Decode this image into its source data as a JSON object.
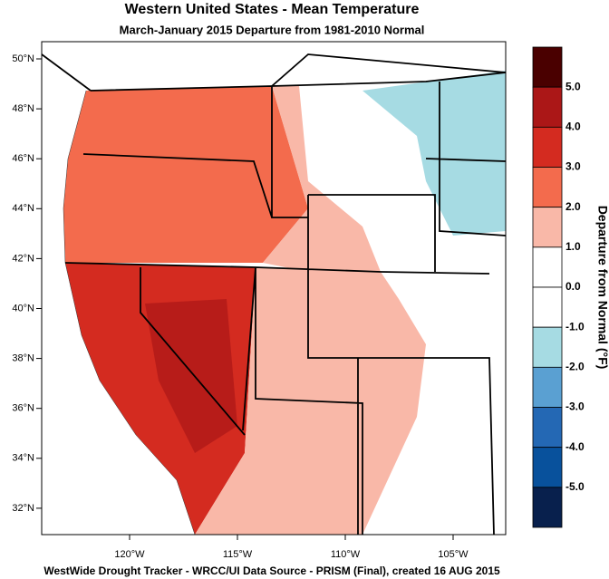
{
  "header": {
    "title": "Western United States - Mean Temperature",
    "subtitle": "March-January 2015  Departure from 1981-2010 Normal"
  },
  "map": {
    "lat_labels": [
      "50°N",
      "48°N",
      "46°N",
      "44°N",
      "42°N",
      "40°N",
      "38°N",
      "36°N",
      "34°N",
      "32°N"
    ],
    "lon_labels": [
      "120°W",
      "115°W",
      "110°W",
      "105°W"
    ]
  },
  "colorbar": {
    "title": "Departure from Normal (°F)",
    "labels": [
      "5.0",
      "4.0",
      "3.0",
      "2.0",
      "1.0",
      "0.0",
      "-1.0",
      "-2.0",
      "-3.0",
      "-4.0",
      "-5.0"
    ],
    "colors": [
      "#4a0000",
      "#ab1717",
      "#d42b20",
      "#f36b4d",
      "#f9b8a8",
      "#ffffff",
      "#ffffff",
      "#a6dbe3",
      "#5aa0d2",
      "#2468b4",
      "#08519c",
      "#08204d"
    ]
  },
  "footer": "WestWide Drought Tracker - WRCC/UI  Data Source - PRISM (Final), created 16 AUG 2015"
}
